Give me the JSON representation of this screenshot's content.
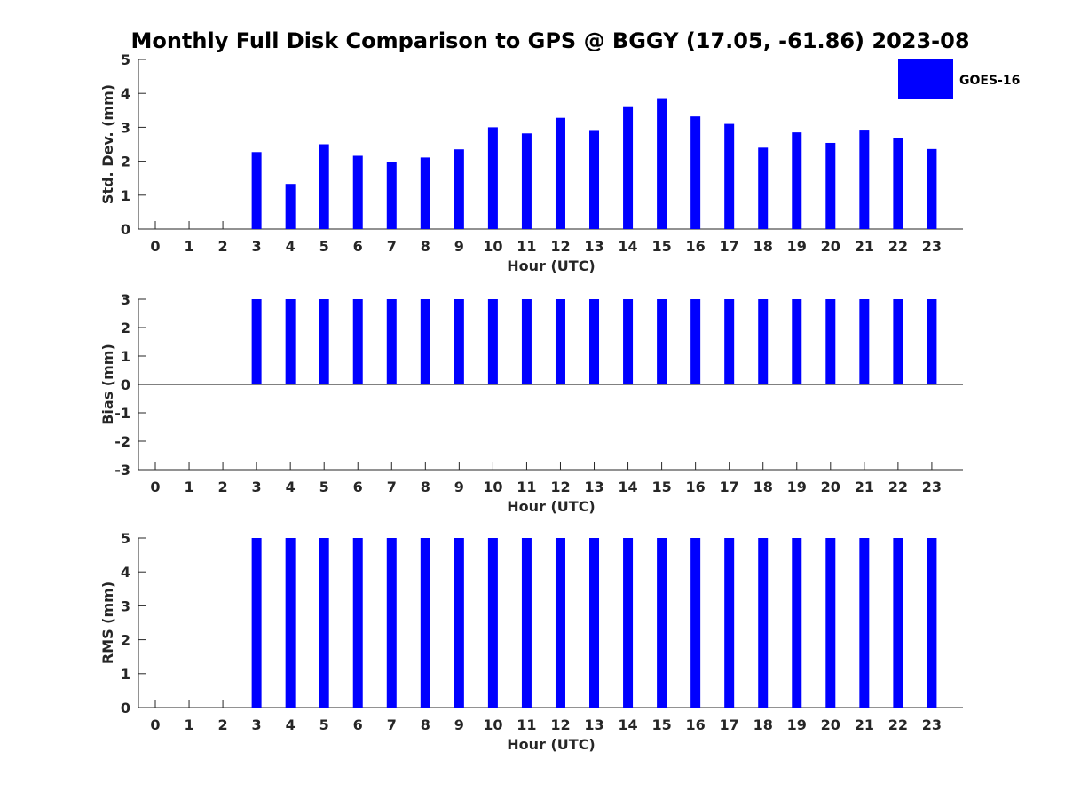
{
  "figure": {
    "title": "Monthly Full Disk Comparison to GPS @ BGGY (17.05, -61.86) 2023-08",
    "legend": {
      "label": "GOES-16",
      "color": "#0000ff",
      "placement": "top-right"
    }
  },
  "chart_data": [
    {
      "type": "bar",
      "name": "std-dev",
      "categories": [
        "0",
        "1",
        "2",
        "3",
        "4",
        "5",
        "6",
        "7",
        "8",
        "9",
        "10",
        "11",
        "12",
        "13",
        "14",
        "15",
        "16",
        "17",
        "18",
        "19",
        "20",
        "21",
        "22",
        "23"
      ],
      "series": [
        {
          "name": "GOES-16",
          "color": "#0000ff",
          "values": [
            null,
            null,
            null,
            2.27,
            1.33,
            2.5,
            2.16,
            1.98,
            2.11,
            2.35,
            3.0,
            2.82,
            3.28,
            2.92,
            3.62,
            3.86,
            3.32,
            3.1,
            2.4,
            2.85,
            2.54,
            2.93,
            2.69,
            2.36
          ]
        }
      ],
      "xlabel": "Hour (UTC)",
      "ylabel": "Std. Dev. (mm)",
      "ylim": [
        0,
        5
      ],
      "yticks": [
        0,
        1,
        2,
        3,
        4,
        5
      ],
      "grid": false
    },
    {
      "type": "bar",
      "name": "bias",
      "categories": [
        "0",
        "1",
        "2",
        "3",
        "4",
        "5",
        "6",
        "7",
        "8",
        "9",
        "10",
        "11",
        "12",
        "13",
        "14",
        "15",
        "16",
        "17",
        "18",
        "19",
        "20",
        "21",
        "22",
        "23"
      ],
      "series": [
        {
          "name": "GOES-16",
          "color": "#0000ff",
          "values": [
            null,
            null,
            null,
            3,
            3,
            3,
            3,
            3,
            3,
            3,
            3,
            3,
            3,
            3,
            3,
            3,
            3,
            3,
            3,
            3,
            3,
            3,
            3,
            3
          ]
        }
      ],
      "xlabel": "Hour (UTC)",
      "ylabel": "Bias (mm)",
      "ylim": [
        -3,
        3
      ],
      "yticks": [
        -3,
        -2,
        -1,
        0,
        1,
        2,
        3
      ],
      "zero_line": true,
      "grid": false
    },
    {
      "type": "bar",
      "name": "rms",
      "categories": [
        "0",
        "1",
        "2",
        "3",
        "4",
        "5",
        "6",
        "7",
        "8",
        "9",
        "10",
        "11",
        "12",
        "13",
        "14",
        "15",
        "16",
        "17",
        "18",
        "19",
        "20",
        "21",
        "22",
        "23"
      ],
      "series": [
        {
          "name": "GOES-16",
          "color": "#0000ff",
          "values": [
            null,
            null,
            null,
            5,
            5,
            5,
            5,
            5,
            5,
            5,
            5,
            5,
            5,
            5,
            5,
            5,
            5,
            5,
            5,
            5,
            5,
            5,
            5,
            5
          ]
        }
      ],
      "xlabel": "Hour (UTC)",
      "ylabel": "RMS (mm)",
      "ylim": [
        0,
        5
      ],
      "yticks": [
        0,
        1,
        2,
        3,
        4,
        5
      ],
      "grid": false
    }
  ]
}
